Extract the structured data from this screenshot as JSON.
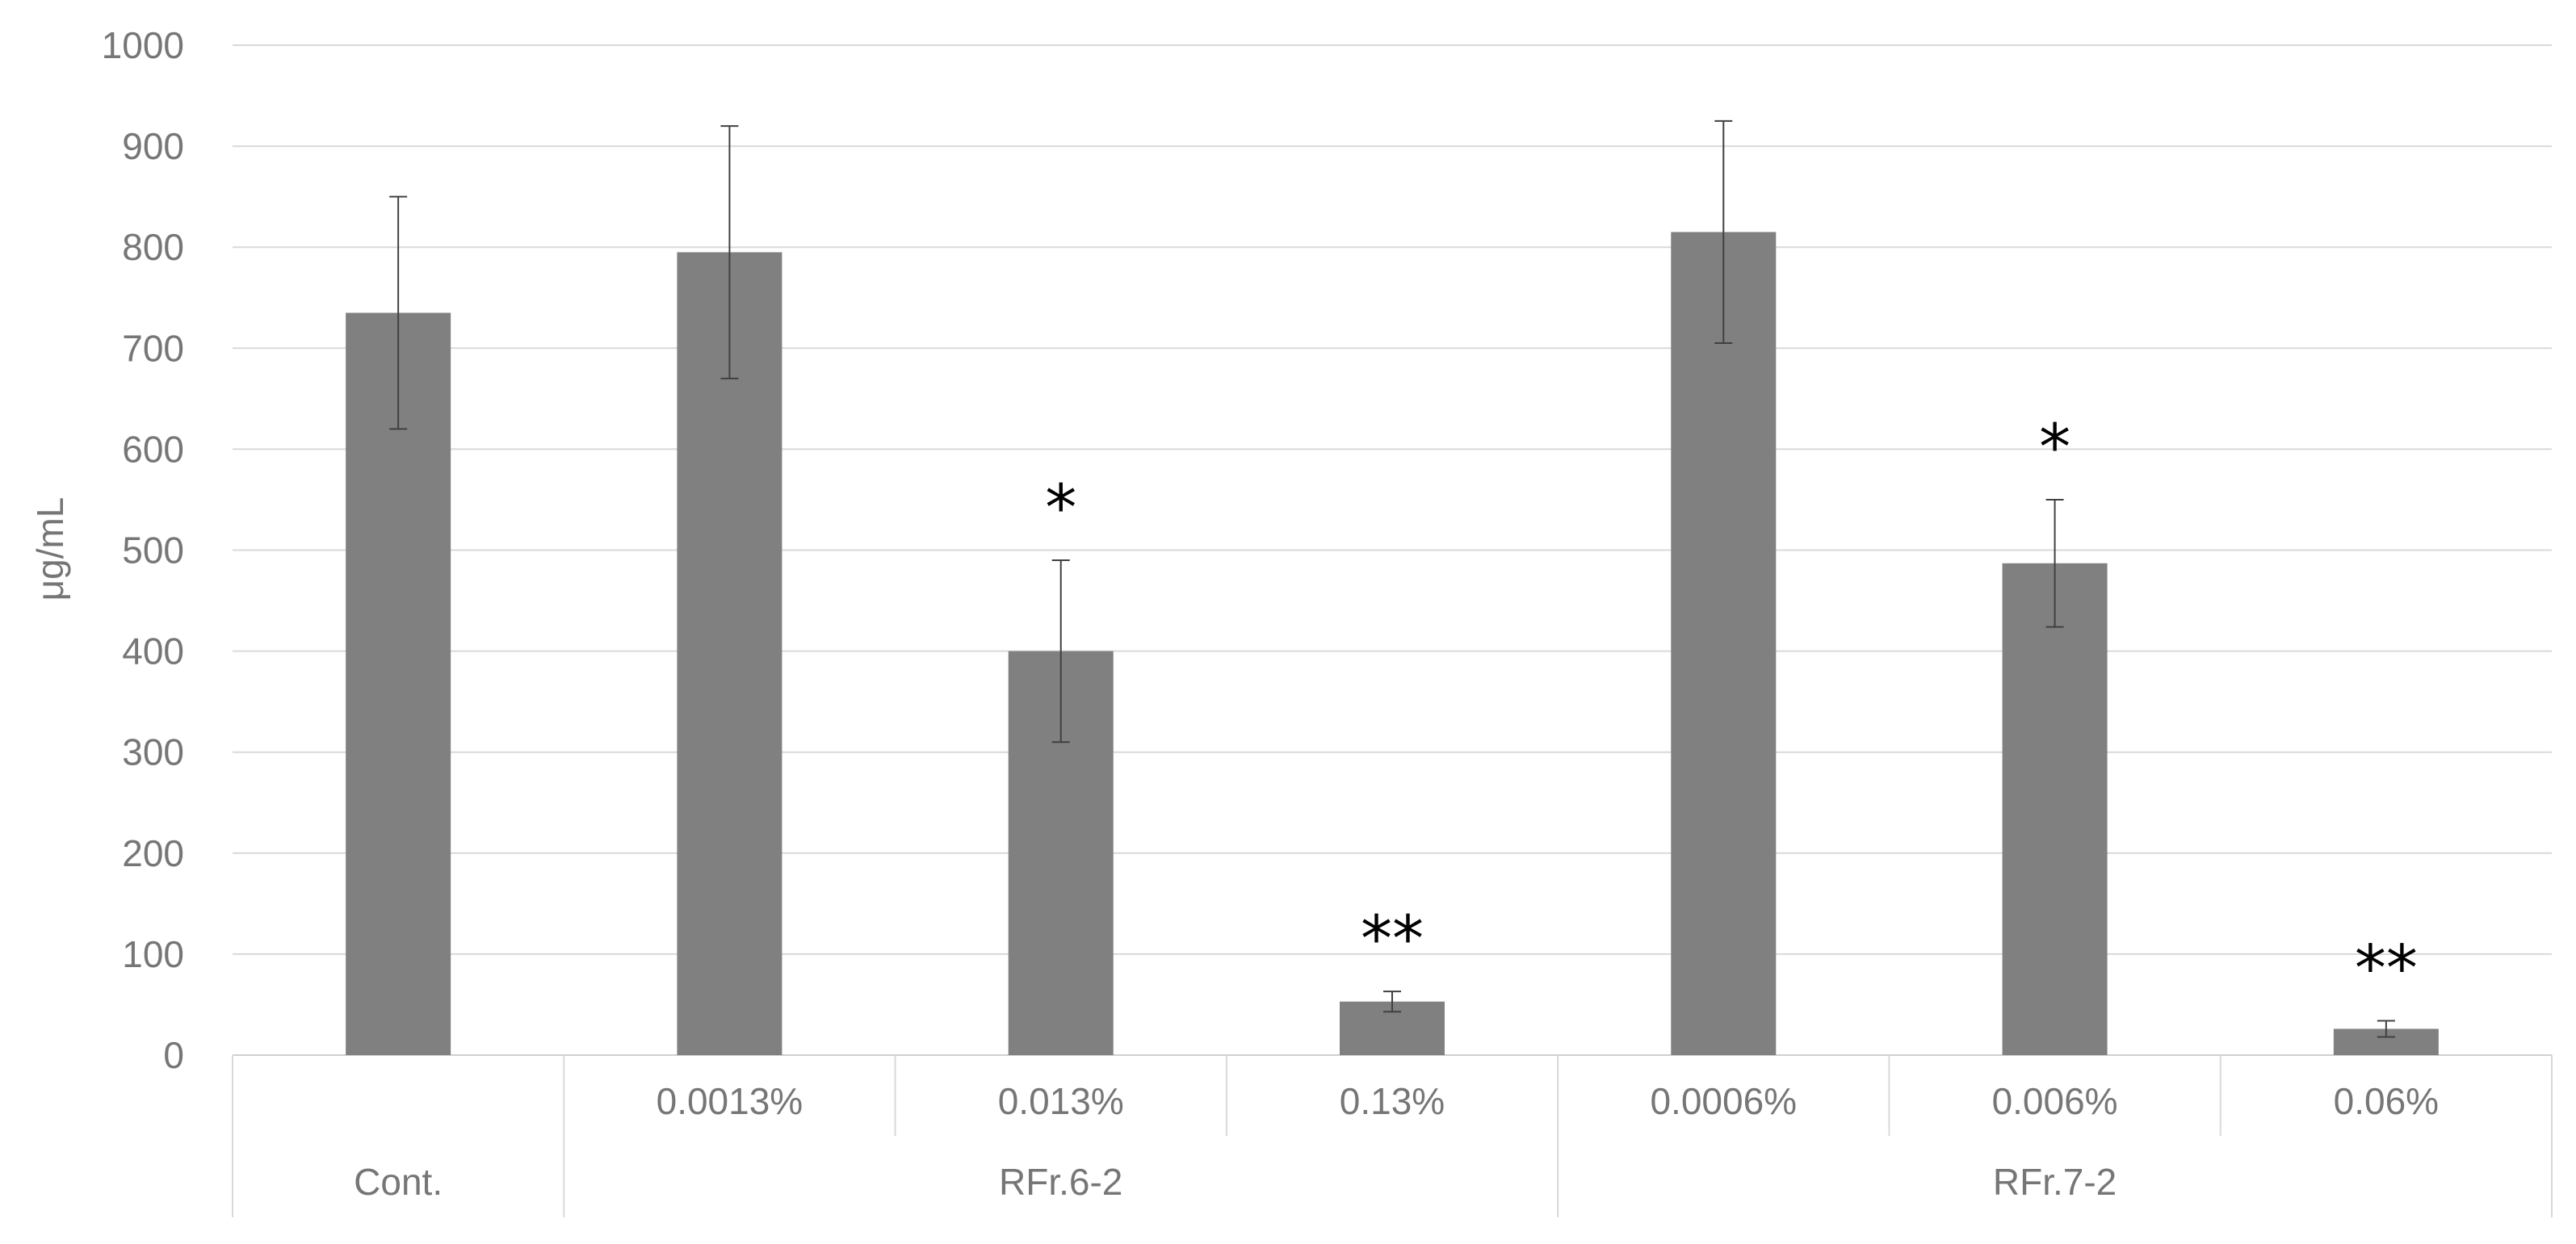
{
  "chart_data": {
    "type": "bar",
    "title": "",
    "ylabel": "μg/mL",
    "xlabel": "",
    "ylim": [
      0,
      1000
    ],
    "yticks": [
      0,
      100,
      200,
      300,
      400,
      500,
      600,
      700,
      800,
      900,
      1000
    ],
    "grid": true,
    "legend": "none",
    "bar_color": "#808080",
    "bars": [
      {
        "category": "",
        "group": "Cont.",
        "value": 735,
        "error": 115,
        "significance": ""
      },
      {
        "category": "0.0013%",
        "group": "RFr.6-2",
        "value": 795,
        "error": 125,
        "significance": ""
      },
      {
        "category": "0.013%",
        "group": "RFr.6-2",
        "value": 400,
        "error": 90,
        "significance": "*"
      },
      {
        "category": "0.13%",
        "group": "RFr.6-2",
        "value": 53,
        "error": 10,
        "significance": "**"
      },
      {
        "category": "0.0006%",
        "group": "RFr.7-2",
        "value": 815,
        "error": 110,
        "significance": ""
      },
      {
        "category": "0.006%",
        "group": "RFr.7-2",
        "value": 487,
        "error": 63,
        "significance": "*"
      },
      {
        "category": "0.06%",
        "group": "RFr.7-2",
        "value": 26,
        "error": 8,
        "significance": "**"
      }
    ],
    "groups": [
      {
        "label": "Cont.",
        "start": 0,
        "count": 1
      },
      {
        "label": "RFr.6-2",
        "start": 1,
        "count": 3
      },
      {
        "label": "RFr.7-2",
        "start": 4,
        "count": 3
      }
    ]
  }
}
